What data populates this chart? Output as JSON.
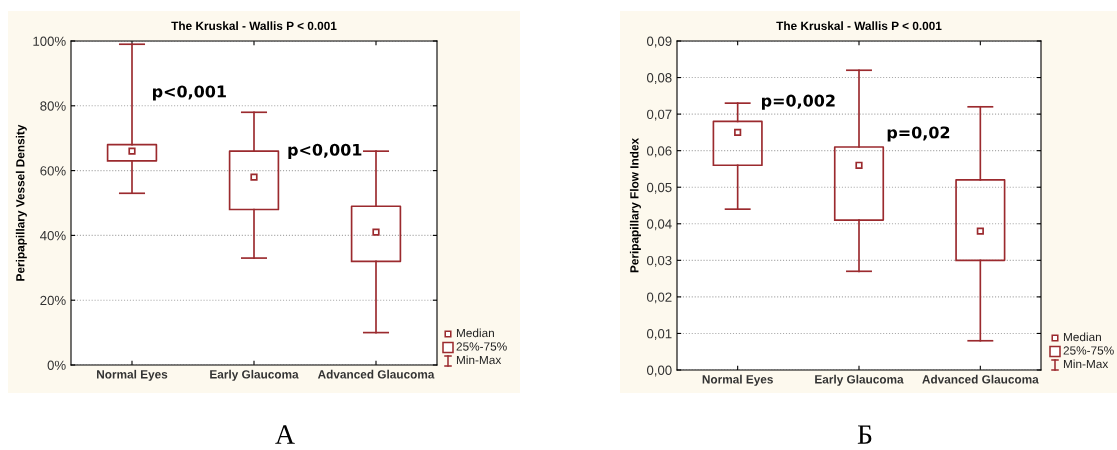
{
  "chart_data": [
    {
      "type": "box",
      "title": "The Kruskal - Wallis P < 0.001",
      "ylabel": "Peripapillary Vessel Density",
      "categories": [
        "Normal Eyes",
        "Early Glaucoma",
        "Advanced Glaucoma"
      ],
      "color": "#9b2a2e",
      "ylim": [
        0,
        100
      ],
      "yticks": [
        {
          "value": 0,
          "label": "0%"
        },
        {
          "value": 20,
          "label": "20%"
        },
        {
          "value": 40,
          "label": "40%"
        },
        {
          "value": 60,
          "label": "60%"
        },
        {
          "value": 80,
          "label": "80%"
        },
        {
          "value": 100,
          "label": "100%"
        }
      ],
      "boxes": [
        {
          "low": 53,
          "q1": 63,
          "median": 66,
          "q3": 68,
          "high": 99
        },
        {
          "low": 33,
          "q1": 48,
          "median": 58,
          "q3": 66,
          "high": 78
        },
        {
          "low": 10,
          "q1": 32,
          "median": 41,
          "q3": 49,
          "high": 66
        }
      ],
      "grid": "y",
      "annotations": [
        "Median",
        "25%-75%",
        "Min-Max",
        "p<0,001",
        "p<0,001",
        "А"
      ]
    },
    {
      "type": "box",
      "title": "The Kruskal - Wallis P < 0.001",
      "ylabel": "Peripapillary Flow Index",
      "categories": [
        "Normal Eyes",
        "Early Glaucoma",
        "Advanced Glaucoma"
      ],
      "color": "#9b2a2e",
      "ylim": [
        0,
        0.09
      ],
      "yticks": [
        {
          "value": 0,
          "label": "0,00"
        },
        {
          "value": 0.01,
          "label": "0,01"
        },
        {
          "value": 0.02,
          "label": "0,02"
        },
        {
          "value": 0.03,
          "label": "0,03"
        },
        {
          "value": 0.04,
          "label": "0,04"
        },
        {
          "value": 0.05,
          "label": "0,05"
        },
        {
          "value": 0.06,
          "label": "0,06"
        },
        {
          "value": 0.07,
          "label": "0,07"
        },
        {
          "value": 0.08,
          "label": "0,08"
        },
        {
          "value": 0.09,
          "label": "0,09"
        }
      ],
      "boxes": [
        {
          "low": 0.044,
          "q1": 0.056,
          "median": 0.065,
          "q3": 0.068,
          "high": 0.073
        },
        {
          "low": 0.027,
          "q1": 0.041,
          "median": 0.056,
          "q3": 0.061,
          "high": 0.082
        },
        {
          "low": 0.008,
          "q1": 0.03,
          "median": 0.038,
          "q3": 0.052,
          "high": 0.072
        }
      ],
      "grid": "y",
      "annotations": [
        "Median",
        "25%-75%",
        "Min-Max",
        "p=0,002",
        "p=0,02",
        "Б"
      ]
    }
  ]
}
